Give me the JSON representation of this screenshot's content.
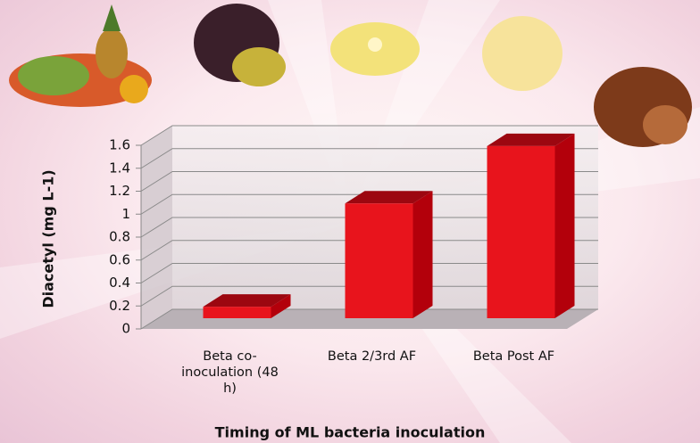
{
  "chart_data": {
    "type": "bar3d",
    "categories": [
      "Beta co-inoculation (48 h)",
      "Beta 2/3rd AF",
      "Beta Post AF"
    ],
    "values": [
      0.1,
      1.0,
      1.5
    ],
    "color": "#e8141c",
    "ylim": [
      0,
      1.6
    ],
    "yticks": [
      0,
      0.2,
      0.4,
      0.6,
      0.8,
      1,
      1.2,
      1.4,
      1.6
    ],
    "grid": true,
    "y_label": "Diacetyl (mg L-1)",
    "x_label": "Timing of ML bacteria inoculation"
  }
}
